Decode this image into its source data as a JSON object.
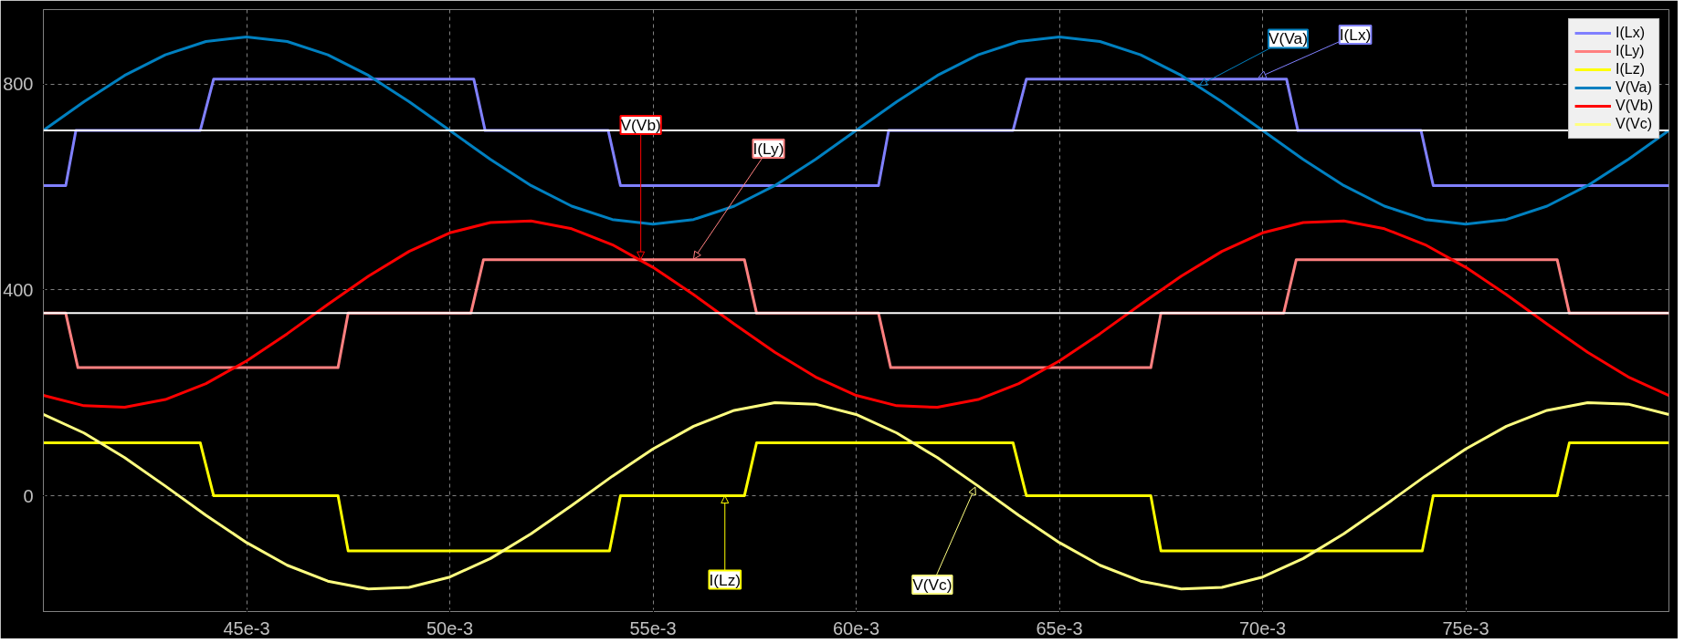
{
  "chart_data": {
    "type": "line",
    "xlim": [
      0.04,
      0.08
    ],
    "ylim": [
      -225,
      945
    ],
    "xticks": [
      {
        "value": 0.045,
        "label": "45e-3"
      },
      {
        "value": 0.05,
        "label": "50e-3"
      },
      {
        "value": 0.055,
        "label": "55e-3"
      },
      {
        "value": 0.06,
        "label": "60e-3"
      },
      {
        "value": 0.065,
        "label": "65e-3"
      },
      {
        "value": 0.07,
        "label": "70e-3"
      },
      {
        "value": 0.075,
        "label": "75e-3"
      }
    ],
    "yticks": [
      0,
      400,
      800
    ],
    "grid": true,
    "legend": "top right",
    "line_style": "solid",
    "marker": "none",
    "series": [
      {
        "name": "I(Lx)",
        "color": "#8080ff",
        "x": [
          0.04,
          0.04055,
          0.0408,
          0.04386,
          0.04419,
          0.05059,
          0.05087,
          0.0539,
          0.0542,
          0.06055,
          0.0608,
          0.06386,
          0.06419,
          0.07059,
          0.07087,
          0.0739,
          0.0742,
          0.08
        ],
        "values": [
          603,
          603,
          710,
          710,
          810,
          810,
          710,
          710,
          603,
          603,
          710,
          710,
          810,
          810,
          710,
          710,
          603,
          603
        ]
      },
      {
        "name": "I(Ly)",
        "color": "#ff8080",
        "x": [
          0.04,
          0.04055,
          0.04085,
          0.04725,
          0.0475,
          0.05052,
          0.05083,
          0.05725,
          0.05755,
          0.06055,
          0.06085,
          0.06725,
          0.0675,
          0.07052,
          0.07083,
          0.07725,
          0.07755,
          0.08
        ],
        "values": [
          355,
          355,
          249,
          249,
          355,
          355,
          459,
          459,
          355,
          355,
          249,
          249,
          355,
          355,
          459,
          459,
          355,
          355
        ]
      },
      {
        "name": "I(Lz)",
        "color": "#ffff00",
        "x": [
          0.04,
          0.04386,
          0.04419,
          0.04725,
          0.0475,
          0.05393,
          0.0542,
          0.05725,
          0.05755,
          0.06386,
          0.06419,
          0.06725,
          0.0675,
          0.07393,
          0.0742,
          0.07725,
          0.07755,
          0.08
        ],
        "values": [
          103,
          103,
          0,
          0,
          -107,
          -107,
          0,
          0,
          103,
          103,
          0,
          0,
          -107,
          -107,
          0,
          0,
          103,
          103
        ]
      },
      {
        "name": "V(Va)",
        "color": "#0080c0",
        "x": [
          0.04,
          0.041,
          0.042,
          0.043,
          0.044,
          0.045,
          0.046,
          0.047,
          0.048,
          0.049,
          0.05,
          0.051,
          0.052,
          0.053,
          0.054,
          0.055,
          0.056,
          0.057,
          0.058,
          0.059,
          0.06,
          0.061,
          0.062,
          0.063,
          0.064,
          0.065,
          0.066,
          0.067,
          0.068,
          0.069,
          0.07,
          0.071,
          0.072,
          0.073,
          0.074,
          0.075,
          0.076,
          0.077,
          0.078,
          0.079,
          0.08
        ],
        "values": [
          710,
          766,
          817,
          857,
          883,
          892,
          883,
          857,
          817,
          766,
          710,
          654,
          603,
          563,
          537,
          528,
          537,
          563,
          603,
          654,
          710,
          766,
          817,
          857,
          883,
          892,
          883,
          857,
          817,
          766,
          710,
          654,
          603,
          563,
          537,
          528,
          537,
          563,
          603,
          654,
          710
        ]
      },
      {
        "name": "V(Vb)",
        "color": "#ff0000",
        "x": [
          0.04,
          0.041,
          0.042,
          0.043,
          0.044,
          0.045,
          0.046,
          0.047,
          0.048,
          0.049,
          0.05,
          0.051,
          0.052,
          0.053,
          0.054,
          0.055,
          0.056,
          0.057,
          0.058,
          0.059,
          0.06,
          0.061,
          0.062,
          0.063,
          0.064,
          0.065,
          0.066,
          0.067,
          0.068,
          0.069,
          0.07,
          0.071,
          0.072,
          0.073,
          0.074,
          0.075,
          0.076,
          0.077,
          0.078,
          0.079,
          0.08
        ],
        "values": [
          195,
          175,
          172,
          187,
          218,
          262,
          315,
          372,
          427,
          475,
          511,
          531,
          534,
          519,
          488,
          444,
          391,
          334,
          279,
          231,
          195,
          175,
          172,
          187,
          218,
          262,
          315,
          372,
          427,
          475,
          511,
          531,
          534,
          519,
          488,
          444,
          391,
          334,
          279,
          231,
          195
        ]
      },
      {
        "name": "V(Vc)",
        "color": "#ffff80",
        "x": [
          0.04,
          0.041,
          0.042,
          0.043,
          0.044,
          0.045,
          0.046,
          0.047,
          0.048,
          0.049,
          0.05,
          0.051,
          0.052,
          0.053,
          0.054,
          0.055,
          0.056,
          0.057,
          0.058,
          0.059,
          0.06,
          0.061,
          0.062,
          0.063,
          0.064,
          0.065,
          0.066,
          0.067,
          0.068,
          0.069,
          0.07,
          0.071,
          0.072,
          0.073,
          0.074,
          0.075,
          0.076,
          0.077,
          0.078,
          0.079,
          0.08
        ],
        "values": [
          158,
          122,
          74,
          19,
          -38,
          -91,
          -135,
          -166,
          -181,
          -178,
          -158,
          -122,
          -74,
          -19,
          38,
          91,
          135,
          166,
          181,
          178,
          158,
          122,
          74,
          19,
          -38,
          -91,
          -135,
          -166,
          -181,
          -178,
          -158,
          -122,
          -74,
          -19,
          38,
          91,
          135,
          166,
          181,
          178,
          158
        ]
      }
    ],
    "ref_lines": [
      {
        "axis": "y",
        "value": 710,
        "color": "#ffffff",
        "line_style": "solid"
      },
      {
        "axis": "y",
        "value": 355,
        "color": "#ffffff",
        "line_style": "solid"
      }
    ],
    "annotations": [
      {
        "text": "V(Va)",
        "x": 0.06845,
        "y": 798
      },
      {
        "text": "I(Lx)",
        "x": 0.0699,
        "y": 813
      },
      {
        "text": "V(Vb)",
        "x": 0.0547,
        "y": 460
      },
      {
        "text": "I(Ly)",
        "x": 0.056,
        "y": 460
      },
      {
        "text": "I(Lz)",
        "x": 0.05677,
        "y": 0
      },
      {
        "text": "V(Vc)",
        "x": 0.06293,
        "y": 17
      }
    ]
  }
}
